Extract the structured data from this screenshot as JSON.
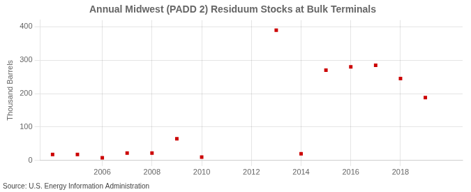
{
  "chart_data": {
    "type": "scatter",
    "title": "Annual Midwest (PADD 2) Residuum Stocks at Bulk Terminals",
    "ylabel": "Thousand Barrels",
    "annotations": [
      "Source: U.S. Energy Information Administration"
    ],
    "x": [
      2004,
      2005,
      2006,
      2007,
      2008,
      2009,
      2010,
      2013,
      2014,
      2015,
      2016,
      2017,
      2018,
      2019
    ],
    "values": [
      18,
      18,
      8,
      22,
      22,
      65,
      10,
      390,
      20,
      270,
      280,
      285,
      245,
      188
    ],
    "color": "#cc0000",
    "marker": "square",
    "xlim": [
      2003.5,
      2020.5
    ],
    "xticks": [
      2006,
      2008,
      2010,
      2012,
      2014,
      2016,
      2018
    ],
    "ylim": [
      0,
      420
    ],
    "yticks": [
      0,
      100,
      200,
      300,
      400
    ],
    "grid": true
  }
}
